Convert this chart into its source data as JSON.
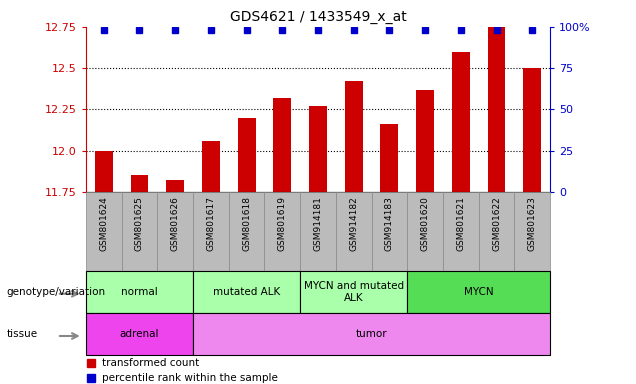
{
  "title": "GDS4621 / 1433549_x_at",
  "samples": [
    "GSM801624",
    "GSM801625",
    "GSM801626",
    "GSM801617",
    "GSM801618",
    "GSM801619",
    "GSM914181",
    "GSM914182",
    "GSM914183",
    "GSM801620",
    "GSM801621",
    "GSM801622",
    "GSM801623"
  ],
  "transformed_count": [
    12.0,
    11.85,
    11.82,
    12.06,
    12.2,
    12.32,
    12.27,
    12.42,
    12.16,
    12.37,
    12.6,
    12.76,
    12.5
  ],
  "percentile_rank": [
    100,
    100,
    100,
    100,
    100,
    100,
    100,
    100,
    100,
    100,
    100,
    100,
    100
  ],
  "ymin": 11.75,
  "ymax": 12.75,
  "yticks": [
    11.75,
    12.0,
    12.25,
    12.5,
    12.75
  ],
  "right_yticks": [
    0,
    25,
    50,
    75,
    100
  ],
  "right_yticklabels": [
    "0",
    "25",
    "50",
    "75",
    "100%"
  ],
  "bar_color": "#cc0000",
  "dot_color": "#0000cc",
  "genotype_groups": [
    {
      "label": "normal",
      "start": 0,
      "end": 3
    },
    {
      "label": "mutated ALK",
      "start": 3,
      "end": 6
    },
    {
      "label": "MYCN and mutated\nALK",
      "start": 6,
      "end": 9
    },
    {
      "label": "MYCN",
      "start": 9,
      "end": 13
    }
  ],
  "genotype_colors": [
    "#aaffaa",
    "#aaffaa",
    "#aaffaa",
    "#55dd55"
  ],
  "tissue_groups": [
    {
      "label": "adrenal",
      "start": 0,
      "end": 3
    },
    {
      "label": "tumor",
      "start": 3,
      "end": 13
    }
  ],
  "tissue_colors": [
    "#ee44ee",
    "#ee88ee"
  ],
  "legend_items": [
    {
      "color": "#cc0000",
      "label": "transformed count"
    },
    {
      "color": "#0000cc",
      "label": "percentile rank within the sample"
    }
  ],
  "left_label_color": "#cc0000",
  "right_label_color": "#0000cc",
  "tick_label_bg": "#bbbbbb",
  "bar_width": 0.5
}
